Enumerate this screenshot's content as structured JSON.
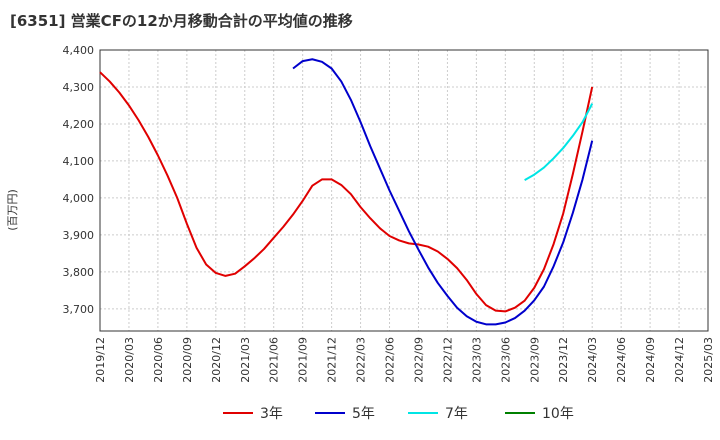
{
  "chart_data": {
    "type": "line",
    "title": "[6351]  営業CFの12か月移動合計の平均値の推移",
    "ylabel": "(百万円)",
    "ylim": [
      3640,
      4400
    ],
    "yticks": [
      3700,
      3800,
      3900,
      4000,
      4100,
      4200,
      4300,
      4400
    ],
    "ytick_labels": [
      "3,700",
      "3,800",
      "3,900",
      "4,000",
      "4,100",
      "4,200",
      "4,300",
      "4,400"
    ],
    "xticks": [
      "2019/12",
      "2020/03",
      "2020/06",
      "2020/09",
      "2020/12",
      "2021/03",
      "2021/06",
      "2021/09",
      "2021/12",
      "2022/03",
      "2022/06",
      "2022/09",
      "2022/12",
      "2023/03",
      "2023/06",
      "2023/09",
      "2023/12",
      "2024/03",
      "2024/06",
      "2024/09",
      "2024/12",
      "2025/03"
    ],
    "grid": true,
    "legend_position": "bottom",
    "series": [
      {
        "name": "3年",
        "color": "#e00000",
        "x": [
          "2019/12",
          "2020/01",
          "2020/02",
          "2020/03",
          "2020/04",
          "2020/05",
          "2020/06",
          "2020/07",
          "2020/08",
          "2020/09",
          "2020/10",
          "2020/11",
          "2020/12",
          "2021/01",
          "2021/02",
          "2021/03",
          "2021/04",
          "2021/05",
          "2021/06",
          "2021/07",
          "2021/08",
          "2021/09",
          "2021/10",
          "2021/11",
          "2021/12",
          "2022/01",
          "2022/02",
          "2022/03",
          "2022/04",
          "2022/05",
          "2022/06",
          "2022/07",
          "2022/08",
          "2022/09",
          "2022/10",
          "2022/11",
          "2022/12",
          "2023/01",
          "2023/02",
          "2023/03",
          "2023/04",
          "2023/05",
          "2023/06",
          "2023/07",
          "2023/08",
          "2023/09",
          "2023/10",
          "2023/11",
          "2023/12",
          "2024/01",
          "2024/02",
          "2024/03"
        ],
        "values": [
          4340,
          4315,
          4285,
          4250,
          4210,
          4165,
          4115,
          4060,
          4000,
          3930,
          3865,
          3820,
          3797,
          3789,
          3795,
          3815,
          3837,
          3862,
          3892,
          3922,
          3955,
          3992,
          4033,
          4050,
          4050,
          4035,
          4010,
          3975,
          3945,
          3918,
          3897,
          3885,
          3877,
          3874,
          3868,
          3855,
          3835,
          3810,
          3778,
          3740,
          3710,
          3695,
          3693,
          3703,
          3722,
          3757,
          3807,
          3875,
          3958,
          4065,
          4180,
          4300
        ]
      },
      {
        "name": "5年",
        "color": "#0000cc",
        "x": [
          "2021/08",
          "2021/09",
          "2021/10",
          "2021/11",
          "2021/12",
          "2022/01",
          "2022/02",
          "2022/03",
          "2022/04",
          "2022/05",
          "2022/06",
          "2022/07",
          "2022/08",
          "2022/09",
          "2022/10",
          "2022/11",
          "2022/12",
          "2023/01",
          "2023/02",
          "2023/03",
          "2023/04",
          "2023/05",
          "2023/06",
          "2023/07",
          "2023/08",
          "2023/09",
          "2023/10",
          "2023/11",
          "2023/12",
          "2024/01",
          "2024/02",
          "2024/03"
        ],
        "values": [
          4350,
          4370,
          4375,
          4368,
          4350,
          4315,
          4265,
          4205,
          4140,
          4080,
          4020,
          3965,
          3910,
          3860,
          3812,
          3770,
          3735,
          3703,
          3680,
          3665,
          3658,
          3658,
          3663,
          3675,
          3695,
          3723,
          3760,
          3815,
          3880,
          3960,
          4050,
          4155
        ]
      },
      {
        "name": "7年",
        "color": "#00e5e5",
        "x": [
          "2023/08",
          "2023/09",
          "2023/10",
          "2023/11",
          "2023/12",
          "2024/01",
          "2024/02",
          "2024/03"
        ],
        "values": [
          4048,
          4063,
          4082,
          4107,
          4135,
          4168,
          4205,
          4255
        ]
      },
      {
        "name": "10年",
        "color": "#008000",
        "x": [],
        "values": []
      }
    ]
  }
}
